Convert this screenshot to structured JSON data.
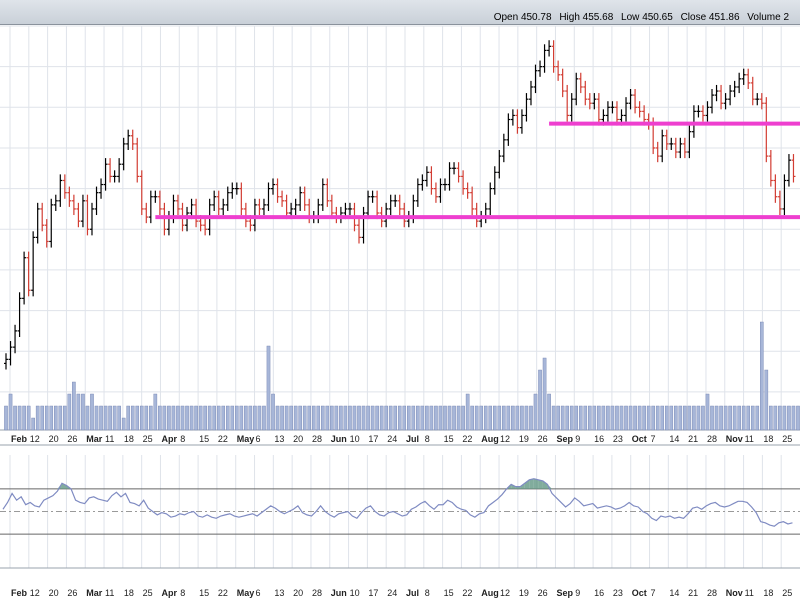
{
  "header": {
    "open_label": "Open",
    "open_value": "450.78",
    "high_label": "High",
    "high_value": "455.68",
    "low_label": "Low",
    "low_value": "450.65",
    "close_label": "Close",
    "close_value": "451.86",
    "volume_label": "Volume",
    "volume_value": "2"
  },
  "colors": {
    "up": "#000000",
    "down": "#d23c32",
    "support": "#ee3fcf",
    "volume": "#a7b6d8",
    "rsi": "#7f8bc2",
    "rsi_fill": "#6b9d8c",
    "grid": "#dfe3ea"
  },
  "chart_data": [
    {
      "type": "ohlc",
      "title": "",
      "x_ticks": [
        {
          "label": "Feb",
          "month": true
        },
        {
          "label": "12"
        },
        {
          "label": "20"
        },
        {
          "label": "26"
        },
        {
          "label": "Mar",
          "month": true
        },
        {
          "label": "11"
        },
        {
          "label": "18"
        },
        {
          "label": "25"
        },
        {
          "label": "Apr",
          "month": true
        },
        {
          "label": "8"
        },
        {
          "label": "15"
        },
        {
          "label": "22"
        },
        {
          "label": "May",
          "month": true
        },
        {
          "label": "6"
        },
        {
          "label": "13"
        },
        {
          "label": "20"
        },
        {
          "label": "28"
        },
        {
          "label": "Jun",
          "month": true
        },
        {
          "label": "10"
        },
        {
          "label": "17"
        },
        {
          "label": "24"
        },
        {
          "label": "Jul",
          "month": true
        },
        {
          "label": "8"
        },
        {
          "label": "15"
        },
        {
          "label": "22"
        },
        {
          "label": "Aug",
          "month": true
        },
        {
          "label": "12"
        },
        {
          "label": "19"
        },
        {
          "label": "26"
        },
        {
          "label": "Sep",
          "month": true
        },
        {
          "label": "9"
        },
        {
          "label": "16"
        },
        {
          "label": "23"
        },
        {
          "label": "Oct",
          "month": true
        },
        {
          "label": "7"
        },
        {
          "label": "14"
        },
        {
          "label": "21"
        },
        {
          "label": "28"
        },
        {
          "label": "Nov",
          "month": true
        },
        {
          "label": "11"
        },
        {
          "label": "18"
        },
        {
          "label": "25"
        }
      ],
      "ohlc_closes": [
        388,
        391,
        395,
        403,
        413,
        405,
        418,
        425,
        421,
        417,
        426,
        427,
        432,
        429,
        427,
        425,
        422,
        427,
        420,
        425,
        429,
        431,
        436,
        433,
        433,
        436,
        441,
        443,
        441,
        433,
        425,
        423,
        428,
        428,
        425,
        420,
        423,
        427,
        425,
        421,
        424,
        426,
        422,
        421,
        420,
        426,
        428,
        425,
        426,
        429,
        430,
        430,
        425,
        422,
        421,
        426,
        425,
        426,
        430,
        431,
        428,
        427,
        424,
        425,
        426,
        429,
        426,
        423,
        423,
        426,
        431,
        427,
        424,
        423,
        424,
        425,
        425,
        421,
        418,
        424,
        428,
        428,
        424,
        422,
        425,
        427,
        427,
        425,
        422,
        423,
        427,
        431,
        432,
        434,
        430,
        428,
        431,
        431,
        435,
        435,
        433,
        430,
        429,
        425,
        422,
        423,
        425,
        430,
        434,
        438,
        442,
        447,
        448,
        445,
        448,
        452,
        455,
        459,
        460,
        464,
        465,
        460,
        458,
        454,
        448,
        452,
        457,
        455,
        452,
        451,
        452,
        447,
        448,
        450,
        450,
        447,
        448,
        451,
        453,
        450,
        449,
        447,
        446,
        440,
        438,
        443,
        441,
        441,
        439,
        441,
        439,
        444,
        449,
        449,
        448,
        450,
        453,
        454,
        451,
        452,
        454,
        455,
        457,
        458,
        456,
        452,
        452,
        451
      ],
      "support_lines": [
        {
          "from_index": 33,
          "to_index": 167,
          "value": 423
        },
        {
          "from_index": 120,
          "to_index": 167,
          "value": 446
        }
      ],
      "tail_closes": [
        438,
        432,
        428,
        425,
        432,
        437,
        433
      ]
    },
    {
      "type": "bar",
      "name": "volume",
      "values": [
        2,
        3,
        2,
        2,
        2,
        2,
        1,
        2,
        2,
        2,
        2,
        2,
        2,
        2,
        3,
        4,
        3,
        3,
        2,
        3,
        2,
        2,
        2,
        2,
        2,
        2,
        1,
        2,
        2,
        2,
        2,
        2,
        2,
        3,
        2,
        2,
        2,
        2,
        2,
        2,
        2,
        2,
        2,
        2,
        2,
        2,
        2,
        2,
        2,
        2,
        2,
        2,
        2,
        2,
        2,
        2,
        2,
        2,
        7,
        3,
        2,
        2,
        2,
        2,
        2,
        2,
        2,
        2,
        2,
        2,
        2,
        2,
        2,
        2,
        2,
        2,
        2,
        2,
        2,
        2,
        2,
        2,
        2,
        2,
        2,
        2,
        2,
        2,
        2,
        2,
        2,
        2,
        2,
        2,
        2,
        2,
        2,
        2,
        2,
        2,
        2,
        2,
        3,
        2,
        2,
        2,
        2,
        2,
        2,
        2,
        2,
        2,
        2,
        2,
        2,
        2,
        2,
        3,
        5,
        6,
        3,
        2,
        2,
        2,
        2,
        2,
        2,
        2,
        2,
        2,
        2,
        2,
        2,
        2,
        2,
        2,
        2,
        2,
        2,
        2,
        2,
        2,
        2,
        2,
        2,
        2,
        2,
        2,
        2,
        2,
        2,
        2,
        2,
        2,
        2,
        3,
        2,
        2,
        2,
        2,
        2,
        2,
        2,
        2,
        2,
        2,
        2,
        9,
        5,
        2,
        2,
        2,
        2,
        2,
        2,
        2
      ]
    },
    {
      "type": "line",
      "name": "rsi",
      "ylim": [
        0,
        100
      ],
      "upper": 70,
      "mid": 50,
      "lower": 30,
      "values": [
        52,
        58,
        66,
        60,
        63,
        56,
        58,
        55,
        54,
        60,
        62,
        64,
        68,
        75,
        73,
        70,
        60,
        58,
        57,
        62,
        63,
        61,
        60,
        59,
        64,
        67,
        63,
        66,
        58,
        57,
        55,
        60,
        53,
        50,
        47,
        49,
        48,
        45,
        46,
        48,
        47,
        49,
        50,
        46,
        45,
        47,
        45,
        44,
        46,
        47,
        48,
        46,
        45,
        46,
        47,
        48,
        46,
        49,
        52,
        55,
        53,
        50,
        48,
        50,
        52,
        55,
        49,
        47,
        46,
        50,
        55,
        50,
        47,
        45,
        48,
        49,
        50,
        46,
        44,
        49,
        53,
        55,
        50,
        47,
        46,
        49,
        50,
        48,
        46,
        47,
        52,
        54,
        57,
        59,
        55,
        52,
        56,
        56,
        60,
        58,
        54,
        52,
        51,
        47,
        45,
        48,
        49,
        55,
        58,
        61,
        65,
        70,
        74,
        72,
        72,
        75,
        78,
        79,
        78,
        77,
        74,
        66,
        62,
        58,
        54,
        57,
        62,
        59,
        55,
        56,
        57,
        53,
        54,
        55,
        54,
        52,
        53,
        55,
        58,
        55,
        54,
        50,
        48,
        44,
        42,
        46,
        45,
        46,
        44,
        45,
        44,
        48,
        53,
        54,
        52,
        55,
        57,
        58,
        55,
        54,
        55,
        57,
        59,
        59,
        58,
        54,
        49,
        41,
        40,
        38,
        37,
        40,
        41,
        39,
        40
      ]
    }
  ]
}
